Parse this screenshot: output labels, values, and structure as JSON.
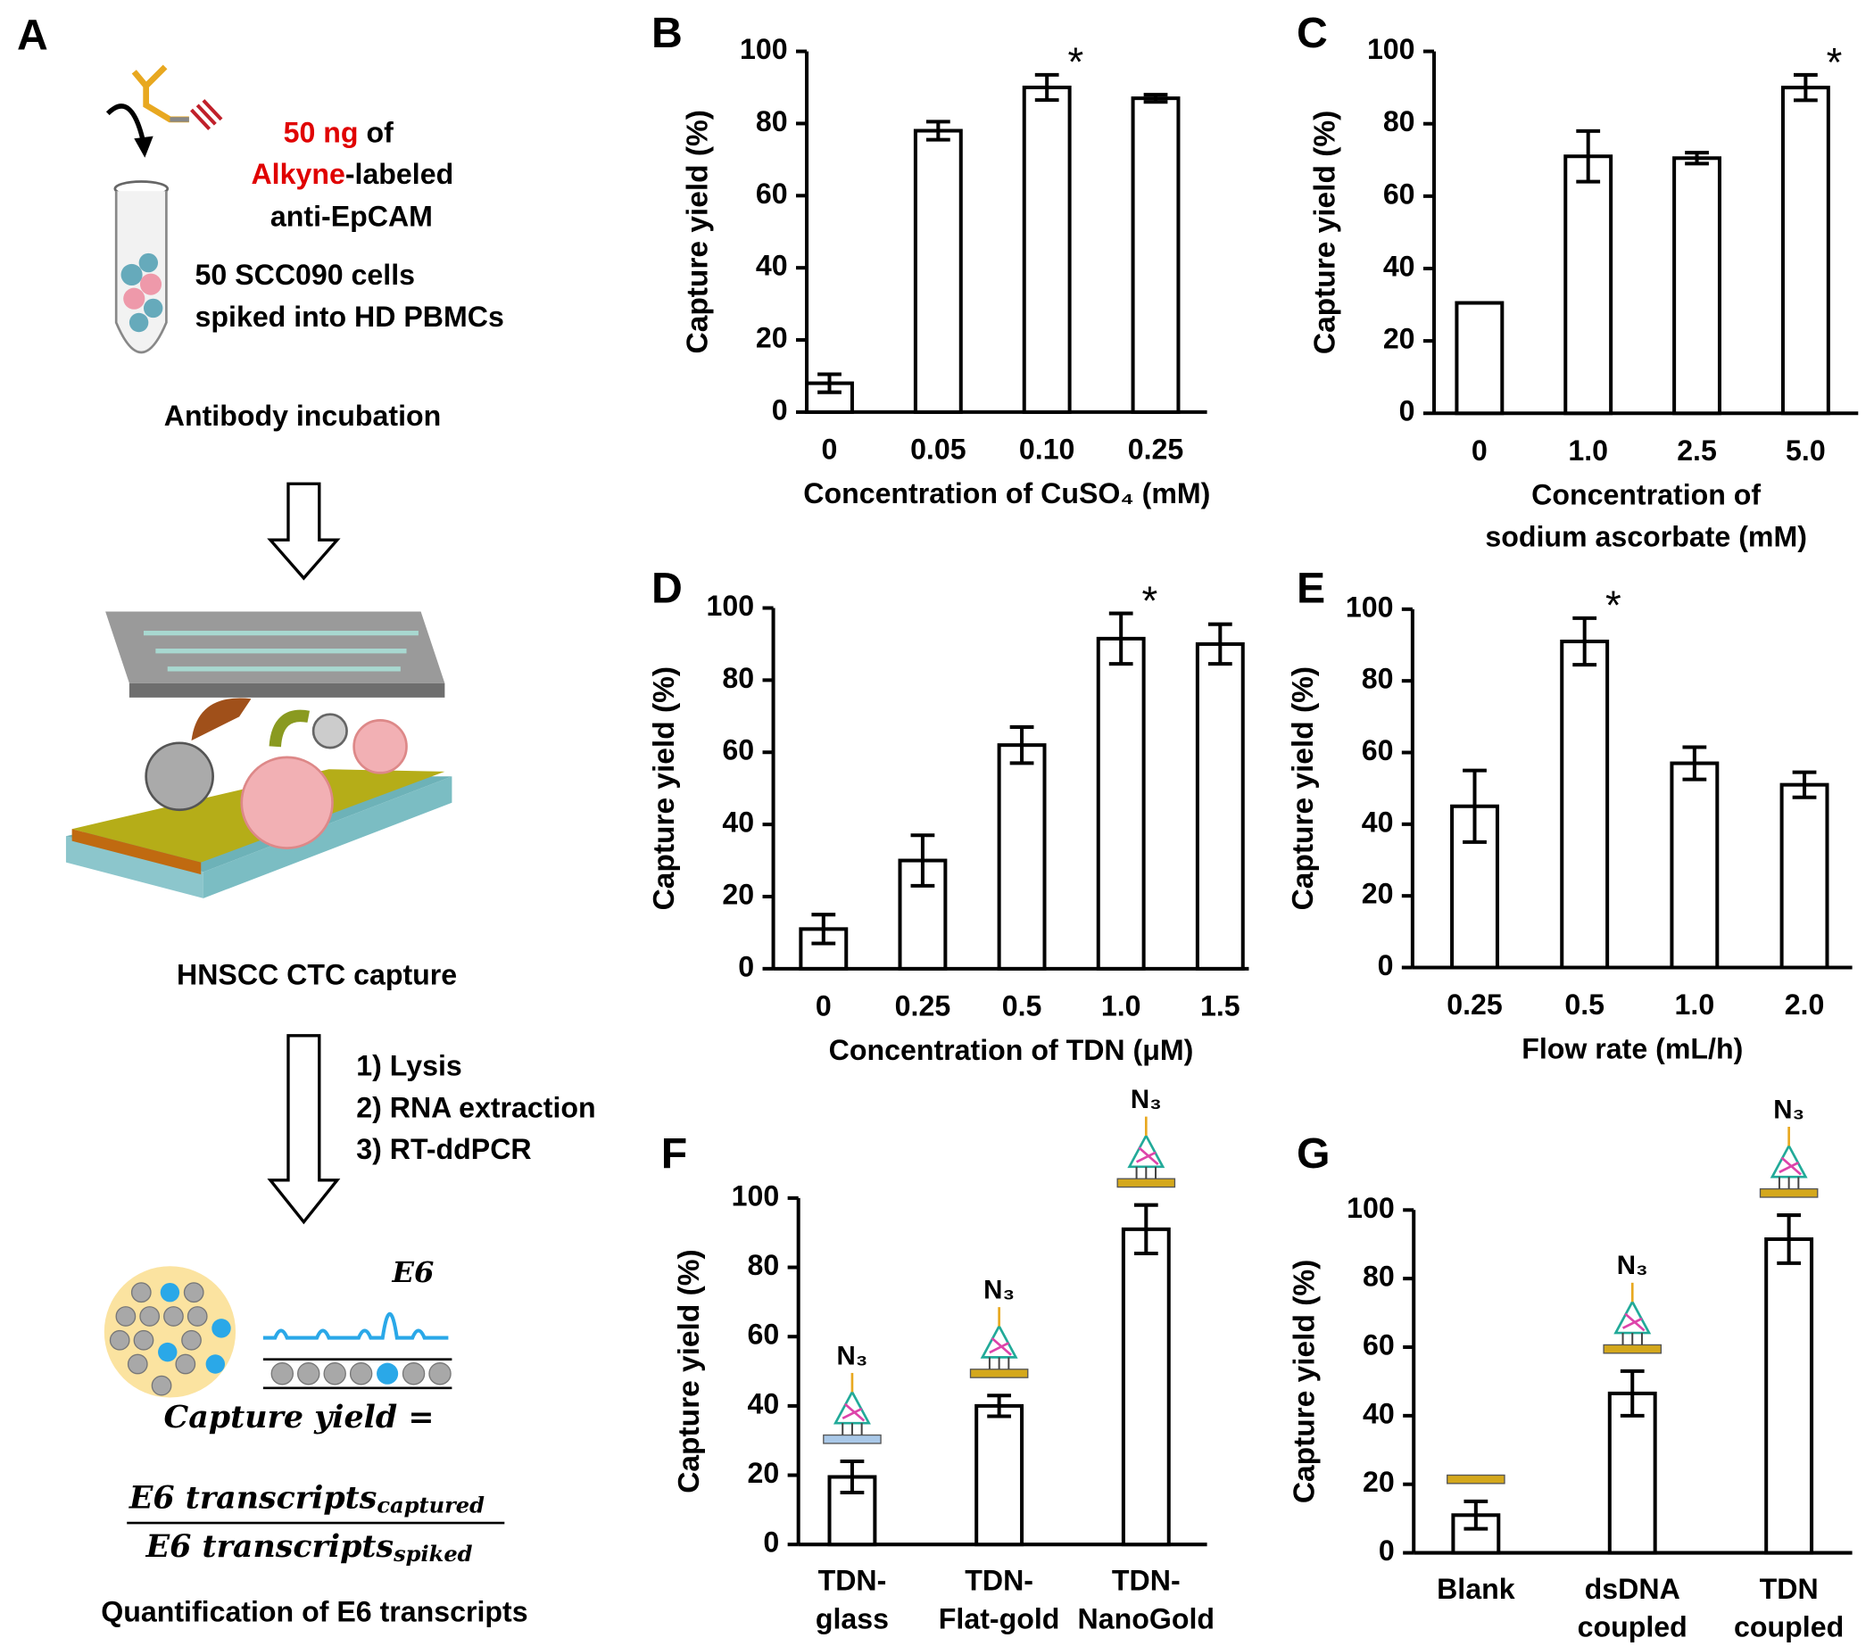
{
  "panel_a": {
    "panel": "A",
    "amount": "50 ng",
    "amount_rest": " of",
    "label": "Alkyne",
    "label_rest": "-labeled",
    "antibody": "anti-EpCAM",
    "cells": "50 SCC090 cells",
    "cells_2": "spiked into HD PBMCs",
    "step_1": "Antibody incubation",
    "step_2": "HNSCC CTC capture",
    "steps": [
      "1) Lysis",
      "2) RNA extraction",
      "3) RT-ddPCR"
    ],
    "peak": "E6",
    "formula": "Capture yield =",
    "numerator": "E6 transcripts",
    "numerator_sub": "captured",
    "denominator": "E6 transcripts",
    "denominator_sub": "spiked",
    "step_3": "Quantification of E6 transcripts"
  },
  "chart_data": [
    {
      "type": "bar",
      "panel": "B",
      "ylabel": "Capture yield (%)",
      "xlabel": [
        "Concentration of CuSO₄ (mM)"
      ],
      "categories": [
        "0",
        "0.05",
        "0.10",
        "0.25"
      ],
      "values": [
        8,
        78,
        90,
        87
      ],
      "errors": [
        2.5,
        2.5,
        3.5,
        1
      ],
      "significance": [
        null,
        null,
        "*",
        null
      ],
      "ylim": [
        0,
        100
      ],
      "yticks": [
        0,
        20,
        40,
        60,
        80,
        100
      ],
      "color": "#ffffff"
    },
    {
      "type": "bar",
      "panel": "C",
      "ylabel": "Capture yield (%)",
      "xlabel": [
        "Concentration of",
        "sodium ascorbate (mM)"
      ],
      "categories": [
        "0",
        "1.0",
        "2.5",
        "5.0"
      ],
      "values": [
        30.5,
        71,
        70.5,
        90
      ],
      "errors": [
        0,
        7,
        1.5,
        3.5
      ],
      "significance": [
        null,
        null,
        null,
        "*"
      ],
      "ylim": [
        0,
        100
      ],
      "yticks": [
        0,
        20,
        40,
        60,
        80,
        100
      ],
      "color": "#ffffff"
    },
    {
      "type": "bar",
      "panel": "D",
      "ylabel": "Capture yield (%)",
      "xlabel": [
        "Concentration of TDN (μM)"
      ],
      "categories": [
        "0",
        "0.25",
        "0.5",
        "1.0",
        "1.5"
      ],
      "values": [
        11,
        30,
        62,
        91.5,
        90
      ],
      "errors": [
        4,
        7,
        5,
        7,
        5.5
      ],
      "significance": [
        null,
        null,
        null,
        "*",
        null
      ],
      "ylim": [
        0,
        100
      ],
      "yticks": [
        0,
        20,
        40,
        60,
        80,
        100
      ],
      "color": "#ffffff"
    },
    {
      "type": "bar",
      "panel": "E",
      "ylabel": "Capture yield (%)",
      "xlabel": [
        "Flow rate (mL/h)"
      ],
      "categories": [
        "0.25",
        "0.5",
        "1.0",
        "2.0"
      ],
      "values": [
        45,
        91,
        57,
        51
      ],
      "errors": [
        10,
        6.5,
        4.5,
        3.5
      ],
      "significance": [
        null,
        "*",
        null,
        null
      ],
      "ylim": [
        0,
        100
      ],
      "yticks": [
        0,
        20,
        40,
        60,
        80,
        100
      ],
      "color": "#ffffff"
    },
    {
      "type": "bar",
      "panel": "F",
      "ylabel": "Capture yield (%)",
      "categories": [
        [
          "TDN-",
          "glass"
        ],
        [
          "TDN-",
          "Flat-gold"
        ],
        [
          "TDN-",
          "NanoGold"
        ]
      ],
      "values": [
        19.5,
        40,
        91
      ],
      "errors": [
        4.5,
        3,
        7
      ],
      "icon_labels": [
        "N₃",
        "N₃",
        "N₃"
      ],
      "substrate_colors": [
        "#a9c8e8",
        "#d4a81c",
        "#d4a81c"
      ],
      "ylim": [
        0,
        100
      ],
      "yticks": [
        0,
        20,
        40,
        60,
        80,
        100
      ],
      "color": "#ffffff"
    },
    {
      "type": "bar",
      "panel": "G",
      "ylabel": "Capture yield (%)",
      "categories": [
        [
          "Blank"
        ],
        [
          "dsDNA",
          "coupled"
        ],
        [
          "TDN",
          "coupled"
        ]
      ],
      "values": [
        11,
        46.5,
        91.5
      ],
      "errors": [
        4,
        6.5,
        7
      ],
      "icon_labels": [
        null,
        "N₃",
        "N₃"
      ],
      "substrate_colors": [
        "#d4a81c",
        "#d4a81c",
        "#d4a81c"
      ],
      "ylim": [
        0,
        100
      ],
      "yticks": [
        0,
        20,
        40,
        60,
        80,
        100
      ],
      "color": "#ffffff"
    }
  ]
}
